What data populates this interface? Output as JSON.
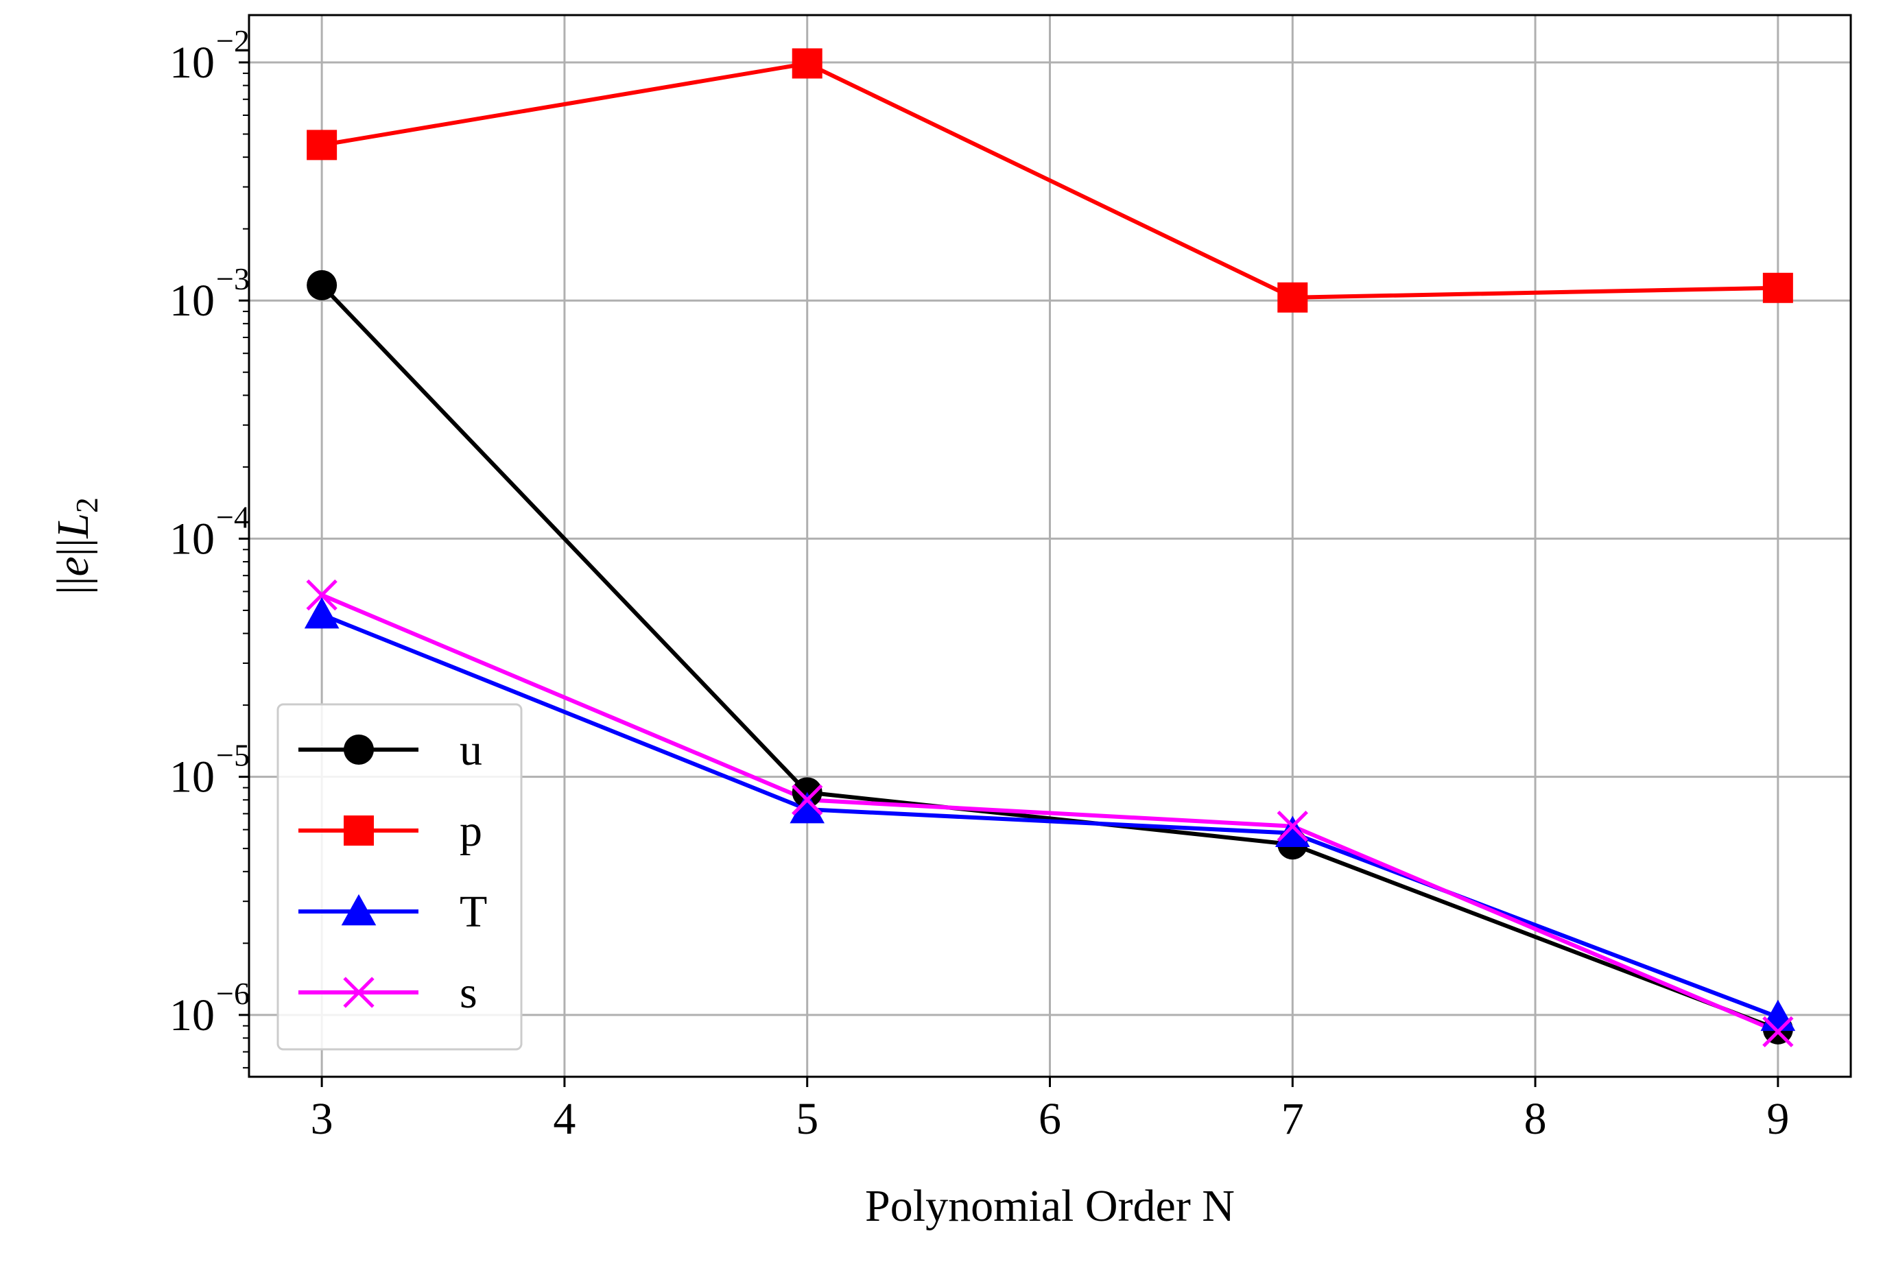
{
  "chart_data": {
    "type": "line",
    "title": "",
    "xlabel": "Polynomial Order N",
    "ylabel": "||e||L2",
    "yscale": "log",
    "xlim": [
      2.7,
      9.3
    ],
    "ylim": [
      5.5e-07,
      0.0158
    ],
    "xticks": [
      3,
      4,
      5,
      6,
      7,
      8,
      9
    ],
    "xtick_labels": [
      "3",
      "4",
      "5",
      "6",
      "7",
      "8",
      "9"
    ],
    "yticks": [
      1e-06,
      1e-05,
      0.0001,
      0.001,
      0.01
    ],
    "ytick_labels": [
      {
        "base": "10",
        "exp": "−6"
      },
      {
        "base": "10",
        "exp": "−5"
      },
      {
        "base": "10",
        "exp": "−4"
      },
      {
        "base": "10",
        "exp": "−3"
      },
      {
        "base": "10",
        "exp": "−2"
      }
    ],
    "grid": true,
    "legend_position": "lower-left",
    "x": [
      3,
      5,
      7,
      9
    ],
    "series": [
      {
        "name": "u",
        "color": "#000000",
        "marker": "circle",
        "values": [
          0.00116,
          8.6e-06,
          5.2e-06,
          8.7e-07
        ]
      },
      {
        "name": "p",
        "color": "#ff0000",
        "marker": "square",
        "values": [
          0.0045,
          0.0099,
          0.00103,
          0.00113
        ]
      },
      {
        "name": "T",
        "color": "#0000ff",
        "marker": "triangle",
        "values": [
          4.8e-05,
          7.3e-06,
          5.8e-06,
          9.8e-07
        ]
      },
      {
        "name": "s",
        "color": "#ff00ff",
        "marker": "x",
        "values": [
          5.8e-05,
          8e-06,
          6.2e-06,
          8.5e-07
        ]
      }
    ]
  }
}
